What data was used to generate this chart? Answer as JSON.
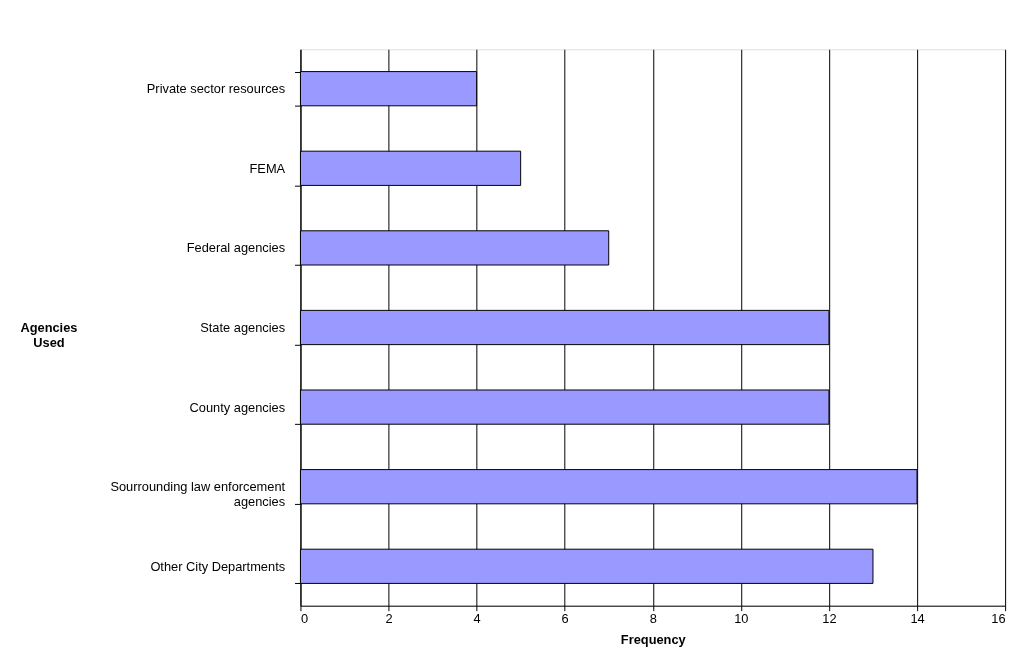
{
  "chart_data": {
    "type": "bar",
    "orientation": "horizontal",
    "xlabel": "Frequency",
    "ylabel": "Agencies Used",
    "categories": [
      "Private sector resources",
      "FEMA",
      "Federal agencies",
      "State agencies",
      "County agencies",
      "Sourrounding law enforcement agencies",
      "Other City Departments"
    ],
    "values": [
      4,
      5,
      7,
      12,
      12,
      14,
      13
    ],
    "color": "#9999ff",
    "xlim": [
      0,
      16
    ],
    "xticks": [
      0,
      2,
      4,
      6,
      8,
      10,
      12,
      14,
      16
    ],
    "grid": "x"
  }
}
